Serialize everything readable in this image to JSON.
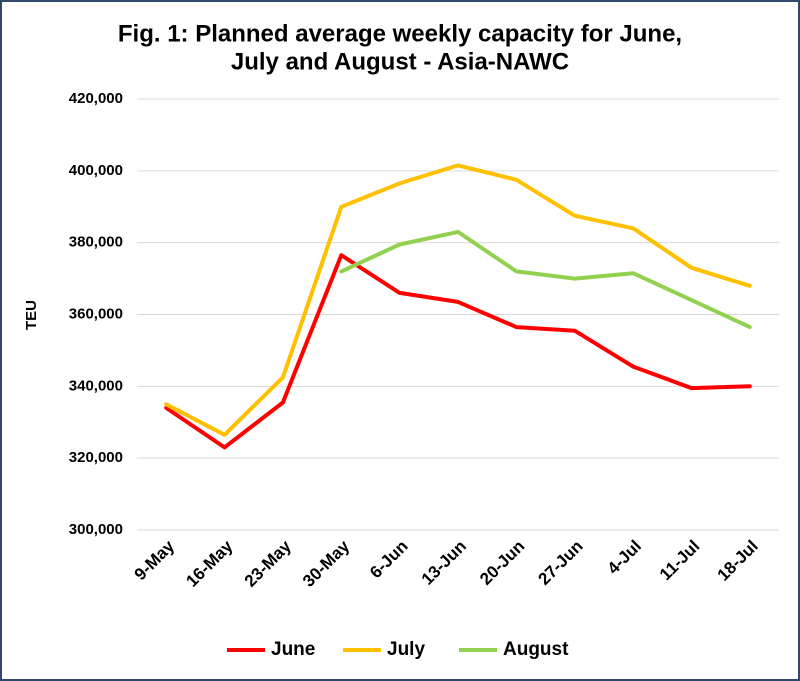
{
  "chart_data": {
    "type": "line",
    "title": [
      "Fig. 1: Planned average weekly capacity for June,",
      "July and August - Asia-NAWC"
    ],
    "y_label": "TEU",
    "categories": [
      "9-May",
      "16-May",
      "23-May",
      "30-May",
      "6-Jun",
      "13-Jun",
      "20-Jun",
      "27-Jun",
      "4-Jul",
      "11-Jul",
      "18-Jul"
    ],
    "series": [
      {
        "name": "June",
        "color": "#ff0000",
        "values": [
          334000,
          323000,
          335500,
          376500,
          366000,
          363500,
          356500,
          355500,
          345500,
          339500,
          340000
        ]
      },
      {
        "name": "July",
        "color": "#ffc000",
        "values": [
          335000,
          326500,
          342500,
          390000,
          396500,
          401500,
          397500,
          387500,
          384000,
          373000,
          368000
        ]
      },
      {
        "name": "August",
        "color": "#92d050",
        "values": [
          null,
          null,
          null,
          372000,
          379500,
          383000,
          372000,
          370000,
          371500,
          364000,
          356500
        ]
      }
    ],
    "ylim": [
      300000,
      420000
    ],
    "yticks": [
      {
        "value": 300000,
        "label": "300,000"
      },
      {
        "value": 320000,
        "label": "320,000"
      },
      {
        "value": 340000,
        "label": "340,000"
      },
      {
        "value": 360000,
        "label": "360,000"
      },
      {
        "value": 380000,
        "label": "380,000"
      },
      {
        "value": 400000,
        "label": "400,000"
      },
      {
        "value": 420000,
        "label": "420,000"
      }
    ],
    "grid": true,
    "legend": "bottom"
  }
}
